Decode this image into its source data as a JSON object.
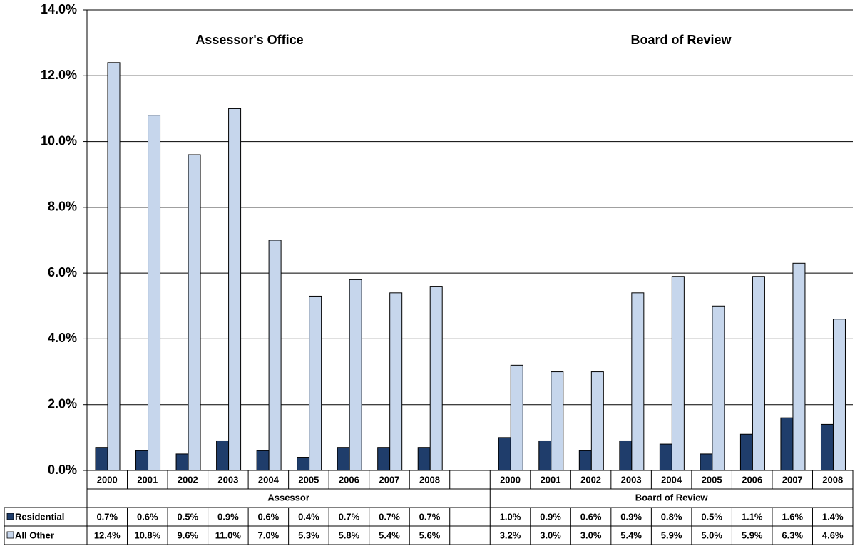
{
  "chart_data": {
    "type": "bar",
    "annotations": [
      "Assessor's Office",
      "Board of Review"
    ],
    "table_groups": [
      "Assessor",
      "Board of Review"
    ],
    "categories": [
      "2000",
      "2001",
      "2002",
      "2003",
      "2004",
      "2005",
      "2006",
      "2007",
      "2008",
      null,
      "2000",
      "2001",
      "2002",
      "2003",
      "2004",
      "2005",
      "2006",
      "2007",
      "2008"
    ],
    "series": [
      {
        "name": "Residential",
        "color": "#1f3d6b",
        "values": [
          0.7,
          0.6,
          0.5,
          0.9,
          0.6,
          0.4,
          0.7,
          0.7,
          0.7,
          null,
          1.0,
          0.9,
          0.6,
          0.9,
          0.8,
          0.5,
          1.1,
          1.6,
          1.4
        ],
        "value_labels": [
          "0.7%",
          "0.6%",
          "0.5%",
          "0.9%",
          "0.6%",
          "0.4%",
          "0.7%",
          "0.7%",
          "0.7%",
          null,
          "1.0%",
          "0.9%",
          "0.6%",
          "0.9%",
          "0.8%",
          "0.5%",
          "1.1%",
          "1.6%",
          "1.4%"
        ]
      },
      {
        "name": "All Other",
        "color": "#c6d6ec",
        "values": [
          12.4,
          10.8,
          9.6,
          11.0,
          7.0,
          5.3,
          5.8,
          5.4,
          5.6,
          null,
          3.2,
          3.0,
          3.0,
          5.4,
          5.9,
          5.0,
          5.9,
          6.3,
          4.6
        ],
        "value_labels": [
          "12.4%",
          "10.8%",
          "9.6%",
          "11.0%",
          "7.0%",
          "5.3%",
          "5.8%",
          "5.4%",
          "5.6%",
          null,
          "3.2%",
          "3.0%",
          "3.0%",
          "5.4%",
          "5.9%",
          "5.0%",
          "5.9%",
          "6.3%",
          "4.6%"
        ]
      }
    ],
    "ylim": [
      0,
      14
    ],
    "yticks": [
      {
        "value": 0,
        "label": "0.0%"
      },
      {
        "value": 2,
        "label": "2.0%"
      },
      {
        "value": 4,
        "label": "4.0%"
      },
      {
        "value": 6,
        "label": "6.0%"
      },
      {
        "value": 8,
        "label": "8.0%"
      },
      {
        "value": 10,
        "label": "10.0%"
      },
      {
        "value": 12,
        "label": "12.0%"
      },
      {
        "value": 14,
        "label": "14.0%"
      }
    ],
    "grid": true
  }
}
